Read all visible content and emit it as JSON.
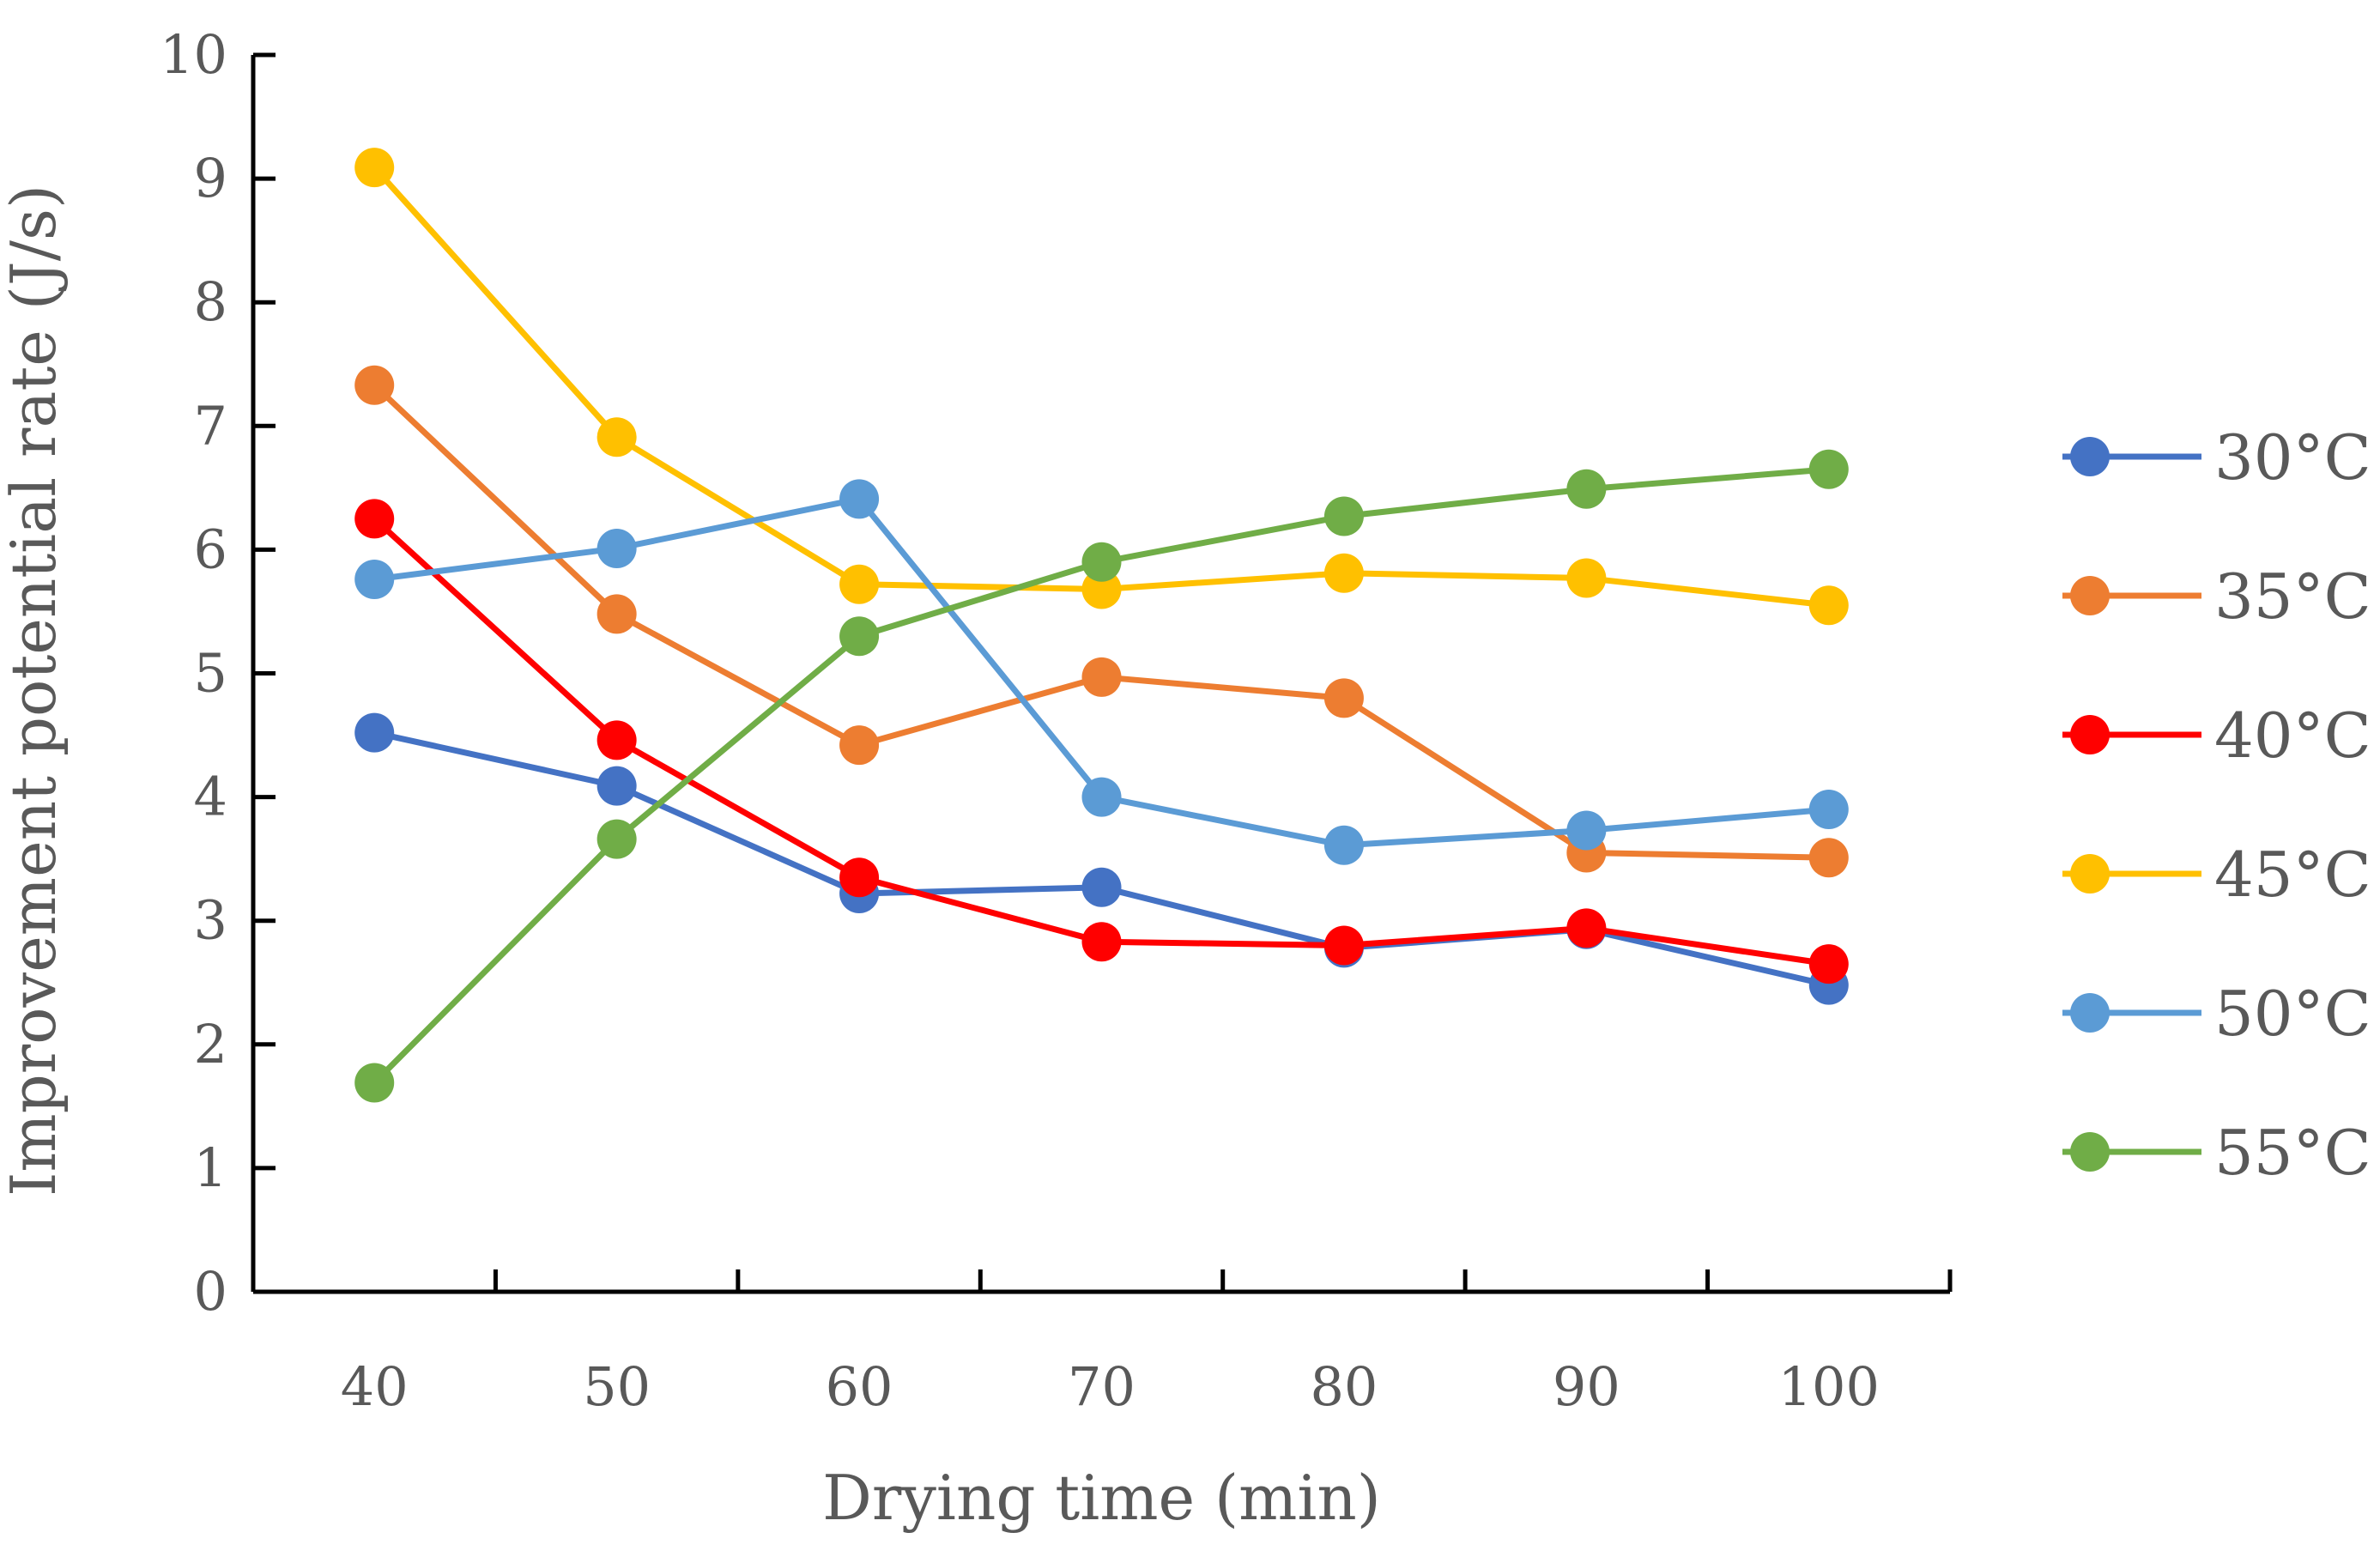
{
  "chart_data": {
    "type": "line",
    "title": "",
    "xlabel": "Drying time (min)",
    "ylabel": "Improvement potential rate  (J/s)",
    "categories": [
      "40",
      "50",
      "60",
      "70",
      "80",
      "90",
      "100"
    ],
    "x": [
      40,
      50,
      60,
      70,
      80,
      90,
      100
    ],
    "ylim": [
      0,
      10
    ],
    "yticks": [
      "0",
      "1",
      "2",
      "3",
      "4",
      "5",
      "6",
      "7",
      "8",
      "9",
      "10"
    ],
    "grid": false,
    "legend_position": "right",
    "series": [
      {
        "name": "30°C",
        "color": "#4472C4",
        "values": [
          4.52,
          4.09,
          3.22,
          3.27,
          2.78,
          2.93,
          2.48
        ]
      },
      {
        "name": "35°C",
        "color": "#ED7D31",
        "values": [
          7.33,
          5.48,
          4.42,
          4.97,
          4.8,
          3.55,
          3.51
        ]
      },
      {
        "name": "40°C",
        "color": "#FF0000",
        "values": [
          6.25,
          4.46,
          3.35,
          2.83,
          2.8,
          2.94,
          2.65
        ]
      },
      {
        "name": "45°C",
        "color": "#FFC000",
        "values": [
          9.09,
          6.91,
          5.72,
          5.68,
          5.81,
          5.77,
          5.55
        ]
      },
      {
        "name": "50°C",
        "color": "#5B9BD5",
        "values": [
          5.76,
          6.01,
          6.41,
          4.0,
          3.61,
          3.73,
          3.9
        ]
      },
      {
        "name": "55°C",
        "color": "#70AD47",
        "values": [
          1.69,
          3.66,
          5.3,
          5.9,
          6.27,
          6.49,
          6.65
        ]
      }
    ]
  }
}
